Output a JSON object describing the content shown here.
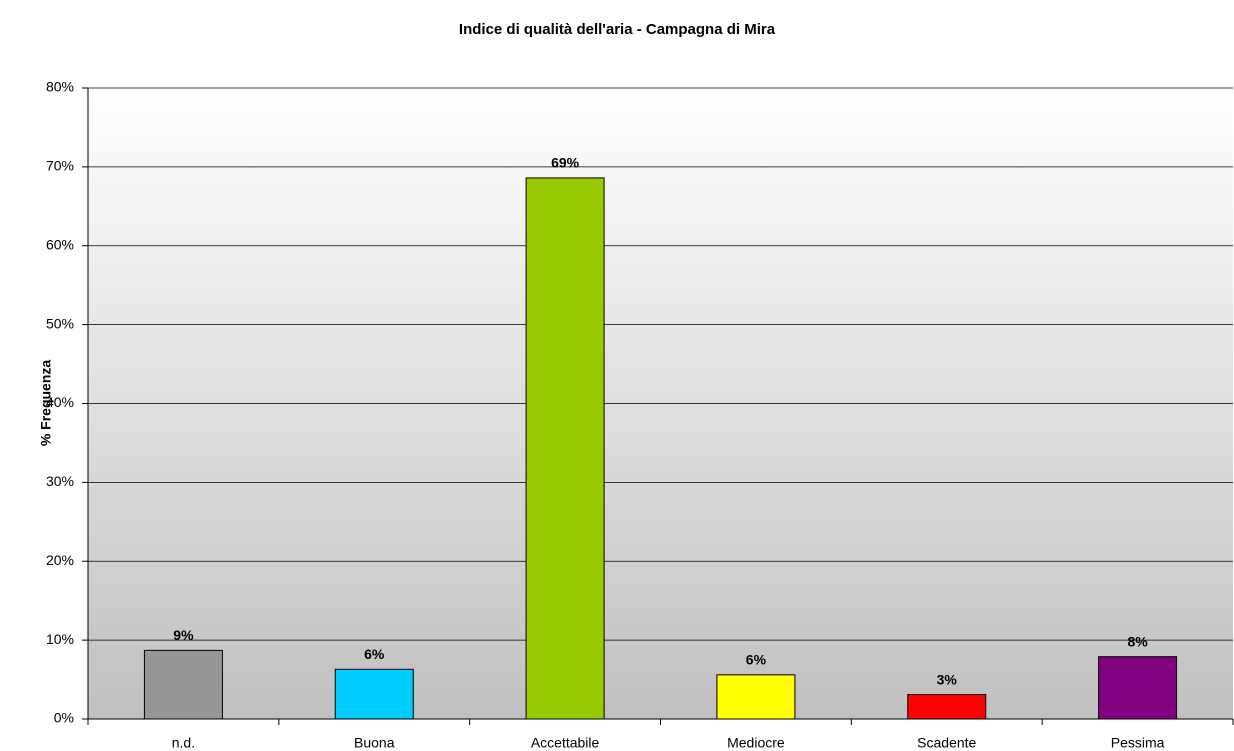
{
  "chart_data": {
    "type": "bar",
    "title": "Indice di qualità dell'aria - Campagna di Mira",
    "y_label": "% Frequenza",
    "categories": [
      "n.d.",
      "Buona",
      "Accettabile",
      "Mediocre",
      "Scadente",
      "Pessima"
    ],
    "values": [
      8.7,
      6.3,
      68.6,
      5.6,
      3.1,
      7.9
    ],
    "value_labels": [
      "9%",
      "6%",
      "69%",
      "6%",
      "3%",
      "8%"
    ],
    "colors": [
      "#969696",
      "#00ccff",
      "#99cc00",
      "#ffff00",
      "#ff0000",
      "#800080"
    ],
    "ylim": [
      0,
      80
    ],
    "yticks": [
      {
        "value": 0,
        "label": "0%"
      },
      {
        "value": 10,
        "label": "10%"
      },
      {
        "value": 20,
        "label": "20%"
      },
      {
        "value": 30,
        "label": "30%"
      },
      {
        "value": 40,
        "label": "40%"
      },
      {
        "value": 50,
        "label": "50%"
      },
      {
        "value": 60,
        "label": "60%"
      },
      {
        "value": 70,
        "label": "70%"
      },
      {
        "value": 80,
        "label": "80%"
      }
    ],
    "grid": true
  }
}
